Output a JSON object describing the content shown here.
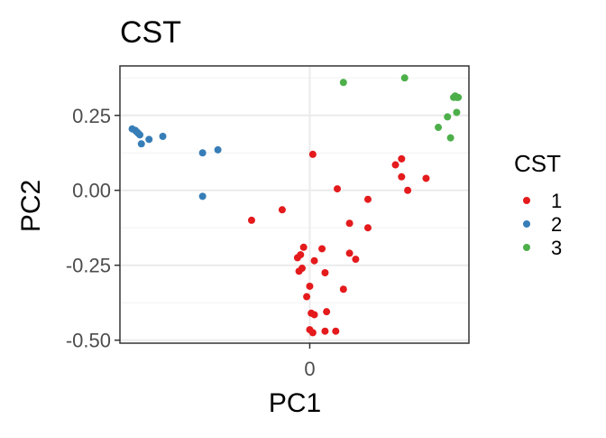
{
  "chart_data": {
    "type": "scatter",
    "title": "CST",
    "xlabel": "PC1",
    "ylabel": "PC2",
    "xlim": [
      -0.62,
      0.52
    ],
    "ylim": [
      -0.51,
      0.415
    ],
    "x_ticks": [
      0
    ],
    "x_tick_labels": [
      "0"
    ],
    "y_ticks": [
      -0.5,
      -0.25,
      0.0,
      0.25
    ],
    "y_tick_labels": [
      "-0.50",
      "-0.25",
      "0.00",
      "0.25"
    ],
    "grid": true,
    "legend": {
      "title": "CST",
      "position": "right",
      "entries": [
        {
          "label": "1",
          "color": "#E41A1C"
        },
        {
          "label": "2",
          "color": "#377EB8"
        },
        {
          "label": "3",
          "color": "#4DAF4A"
        }
      ]
    },
    "series": [
      {
        "name": "1",
        "color": "#E41A1C",
        "points": [
          [
            0.01,
            0.12
          ],
          [
            0.09,
            0.005
          ],
          [
            0.19,
            -0.03
          ],
          [
            0.28,
            0.085
          ],
          [
            0.3,
            0.105
          ],
          [
            0.3,
            0.045
          ],
          [
            0.32,
            0.0
          ],
          [
            0.38,
            0.04
          ],
          [
            0.13,
            -0.11
          ],
          [
            0.19,
            -0.125
          ],
          [
            -0.19,
            -0.1
          ],
          [
            -0.09,
            -0.065
          ],
          [
            -0.02,
            -0.19
          ],
          [
            -0.03,
            -0.215
          ],
          [
            0.04,
            -0.195
          ],
          [
            -0.025,
            -0.26
          ],
          [
            -0.035,
            -0.27
          ],
          [
            -0.04,
            -0.225
          ],
          [
            0.015,
            -0.235
          ],
          [
            0.05,
            -0.275
          ],
          [
            0.13,
            -0.21
          ],
          [
            0.15,
            -0.23
          ],
          [
            0.0,
            -0.32
          ],
          [
            0.11,
            -0.33
          ],
          [
            -0.01,
            -0.355
          ],
          [
            0.005,
            -0.41
          ],
          [
            0.015,
            -0.415
          ],
          [
            0.055,
            -0.405
          ],
          [
            0.0,
            -0.465
          ],
          [
            0.01,
            -0.475
          ],
          [
            0.05,
            -0.47
          ],
          [
            0.085,
            -0.47
          ]
        ]
      },
      {
        "name": "2",
        "color": "#377EB8",
        "points": [
          [
            -0.58,
            0.205
          ],
          [
            -0.57,
            0.2
          ],
          [
            -0.565,
            0.195
          ],
          [
            -0.56,
            0.19
          ],
          [
            -0.555,
            0.185
          ],
          [
            -0.525,
            0.17
          ],
          [
            -0.48,
            0.18
          ],
          [
            -0.55,
            0.155
          ],
          [
            -0.35,
            0.125
          ],
          [
            -0.3,
            0.135
          ],
          [
            -0.35,
            -0.02
          ]
        ]
      },
      {
        "name": "3",
        "color": "#4DAF4A",
        "points": [
          [
            0.11,
            0.36
          ],
          [
            0.31,
            0.375
          ],
          [
            0.47,
            0.31
          ],
          [
            0.475,
            0.315
          ],
          [
            0.48,
            0.31
          ],
          [
            0.485,
            0.31
          ],
          [
            0.48,
            0.26
          ],
          [
            0.45,
            0.245
          ],
          [
            0.42,
            0.21
          ],
          [
            0.46,
            0.175
          ]
        ]
      }
    ]
  }
}
